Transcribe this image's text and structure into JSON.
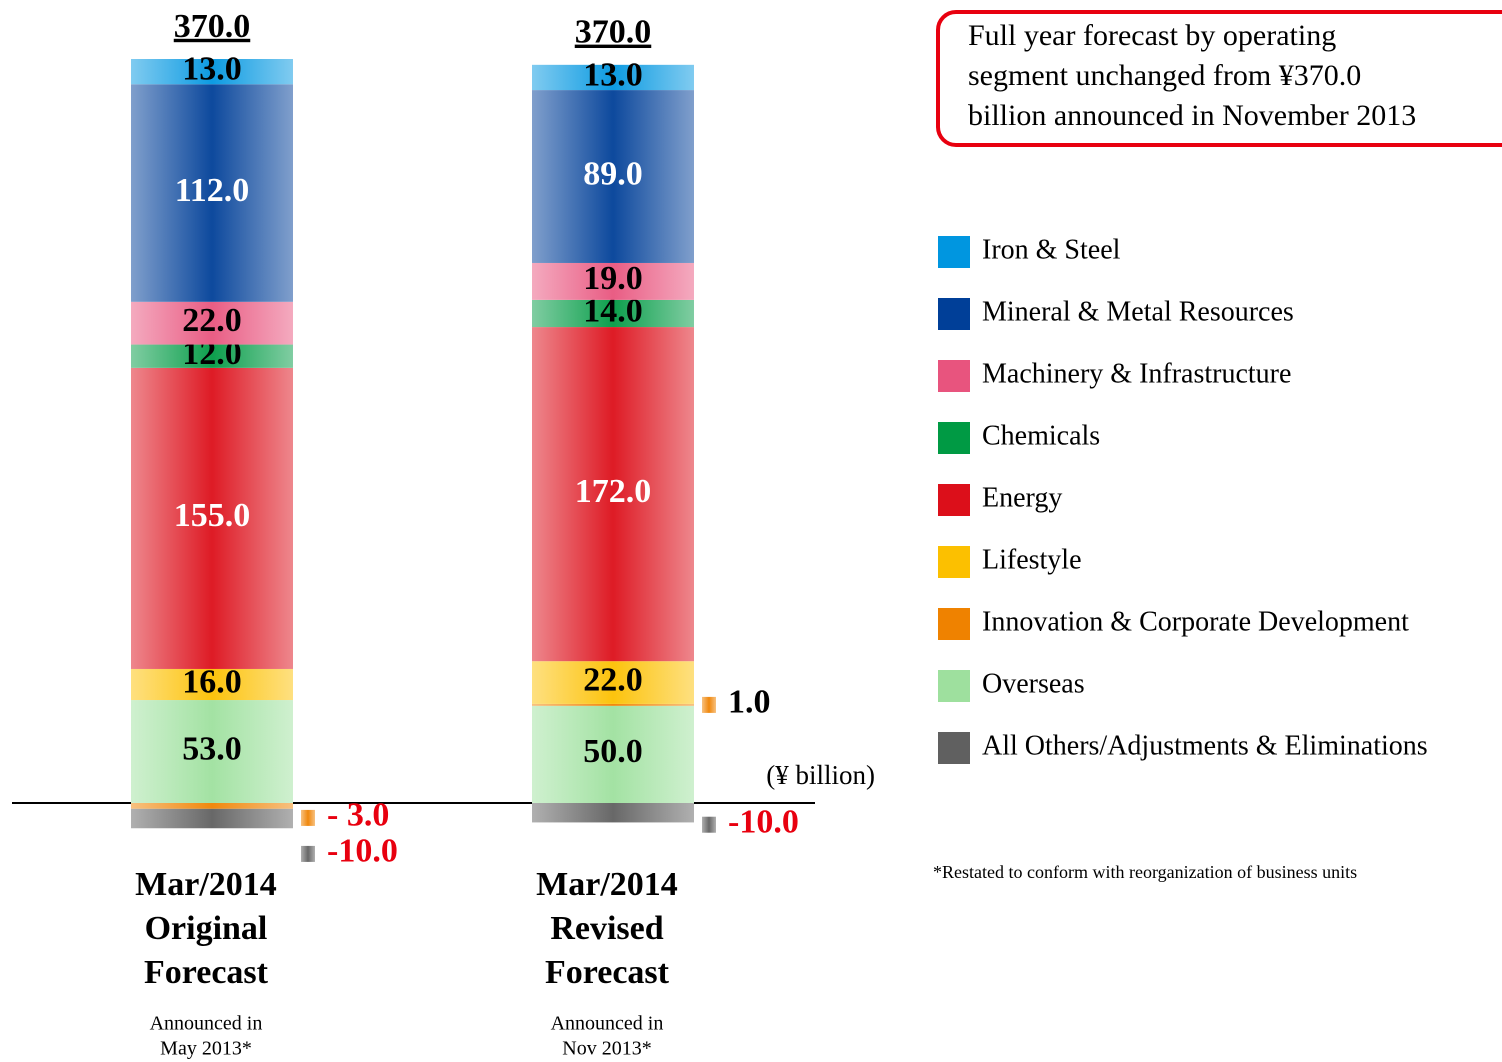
{
  "chart_data": {
    "type": "stacked-bar",
    "categories": [
      [
        "Mar/2014",
        "Original",
        "Forecast"
      ],
      [
        "Mar/2014",
        "Revised",
        "Forecast"
      ]
    ],
    "category_notes": [
      [
        "Announced in",
        "May 2013*"
      ],
      [
        "Announced in",
        "Nov 2013*"
      ]
    ],
    "totals": [
      370,
      370
    ],
    "total_labels": [
      "370.0",
      "370.0"
    ],
    "series": [
      {
        "name": "Iron & Steel",
        "color": "#0096e0",
        "values": [
          13,
          13
        ],
        "value_labels": [
          "13.0",
          "13.0"
        ]
      },
      {
        "name": "Mineral & Metal Resources",
        "color": "#003f98",
        "values": [
          112,
          89
        ],
        "value_labels": [
          "112.0",
          "89.0"
        ]
      },
      {
        "name": "Machinery & Infrastructure",
        "color": "#e8547e",
        "values": [
          22,
          19
        ],
        "value_labels": [
          "22.0",
          "19.0"
        ]
      },
      {
        "name": "Chemicals",
        "color": "#009a44",
        "values": [
          12,
          14
        ],
        "value_labels": [
          "12.0",
          "14.0"
        ]
      },
      {
        "name": "Energy",
        "color": "#dc0f1a",
        "values": [
          155,
          172
        ],
        "value_labels": [
          "155.0",
          "172.0"
        ]
      },
      {
        "name": "Lifestyle",
        "color": "#fcc000",
        "values": [
          16,
          22
        ],
        "value_labels": [
          "16.0",
          "22.0"
        ]
      },
      {
        "name": "Innovation & Corporate Development",
        "color": "#ef8200",
        "values": [
          -3,
          1
        ],
        "value_labels": [
          "- 3.0",
          "1.0"
        ]
      },
      {
        "name": "Overseas",
        "color": "#9ee09e",
        "values": [
          53,
          50
        ],
        "value_labels": [
          "53.0",
          "50.0"
        ]
      },
      {
        "name": "All Others/Adjustments & Eliminations",
        "color": "#606060",
        "values": [
          -10,
          -10
        ],
        "value_labels": [
          "-10.0",
          "-10.0"
        ]
      }
    ],
    "unit_label": "(¥ billion)",
    "annotation": [
      "Full year forecast by operating",
      "segment unchanged from ¥370.0",
      "billion announced in November 2013"
    ],
    "footnote": "*Restated to conform with reorganization of business units"
  }
}
